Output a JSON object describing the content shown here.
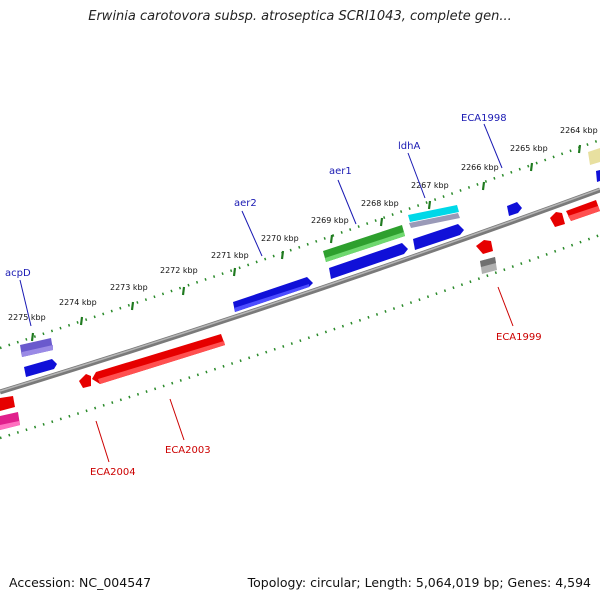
{
  "title": "Erwinia carotovora subsp. atroseptica SCRI1043, complete gen...",
  "footer": {
    "accession": "Accession: NC_004547",
    "summary": "Topology: circular; Length: 5,064,019 bp; Genes: 4,594"
  },
  "scale_labels": [
    "2264 kbp",
    "2265 kbp",
    "2266 kbp",
    "2267 kbp",
    "2268 kbp",
    "2269 kbp",
    "2270 kbp",
    "2271 kbp",
    "2272 kbp",
    "2273 kbp",
    "2274 kbp",
    "2275 kbp"
  ],
  "gene_labels": {
    "acpD": "acpD",
    "aer2": "aer2",
    "aer1": "aer1",
    "ldhA": "ldhA",
    "ECA1998": "ECA1998",
    "ECA1999": "ECA1999",
    "ECA2003": "ECA2003",
    "ECA2004": "ECA2004"
  },
  "colors": {
    "forward_label": "#1a1ab3",
    "reverse_label": "#cc0000",
    "backbone": "#808080",
    "tick": "#2a8a2a",
    "blue_gene": "#1010d8",
    "red_gene": "#e60000",
    "green_gene": "#2ea02e",
    "cyan_gene": "#00d8e8",
    "purple_gene": "#6a5acd",
    "magenta_gene": "#e0208c",
    "grey_gene": "#b0b0b0",
    "yellow_gene": "#e8e0a0"
  }
}
